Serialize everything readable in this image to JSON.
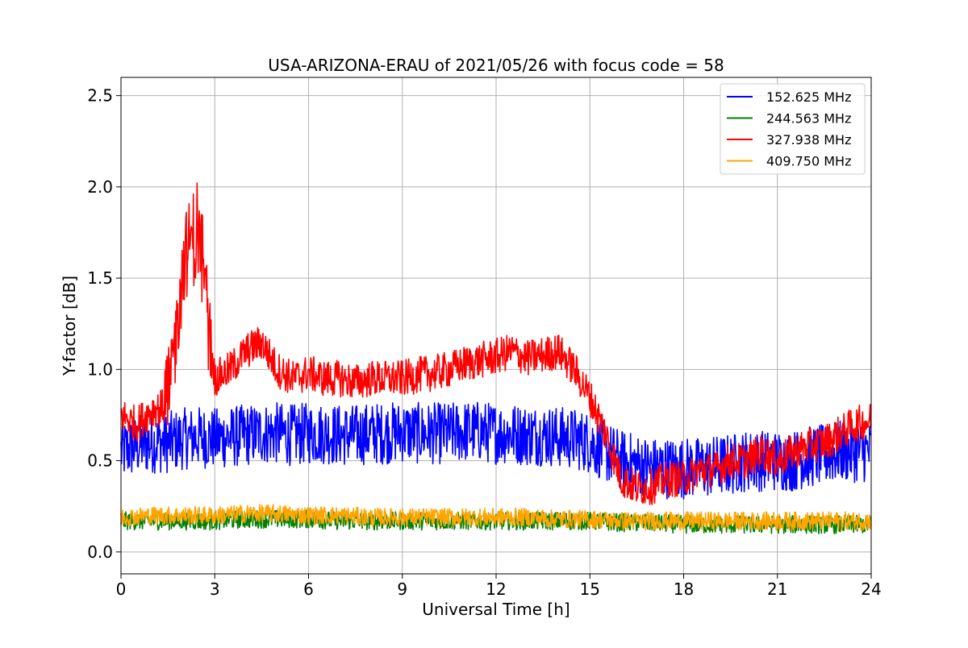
{
  "chart_data": {
    "type": "line",
    "title": "USA-ARIZONA-ERAU of 2021/05/26 with focus code = 58",
    "xlabel": "Universal Time [h]",
    "ylabel": "Y-factor [dB]",
    "xlim": [
      0,
      24
    ],
    "ylim": [
      -0.12,
      2.6
    ],
    "xticks": [
      0,
      3,
      6,
      9,
      12,
      15,
      18,
      21,
      24
    ],
    "xtick_labels": [
      "0",
      "3",
      "6",
      "9",
      "12",
      "15",
      "18",
      "21",
      "24"
    ],
    "yticks": [
      0.0,
      0.5,
      1.0,
      1.5,
      2.0,
      2.5
    ],
    "ytick_labels": [
      "0.0",
      "0.5",
      "1.0",
      "1.5",
      "2.0",
      "2.5"
    ],
    "grid": true,
    "legend_position": "top-right",
    "series": [
      {
        "name": "152.625 MHz",
        "color": "#0000ff",
        "x": [
          0,
          0.5,
          1,
          1.5,
          2,
          2.5,
          3,
          3.5,
          4,
          4.5,
          5,
          5.5,
          6,
          6.5,
          7,
          7.5,
          8,
          8.5,
          9,
          9.5,
          10,
          10.5,
          11,
          11.5,
          12,
          12.5,
          13,
          13.5,
          14,
          14.5,
          15,
          15.5,
          16,
          16.5,
          17,
          17.5,
          18,
          18.5,
          19,
          19.5,
          20,
          20.5,
          21,
          21.5,
          22,
          22.5,
          23,
          23.5,
          24
        ],
        "y": [
          0.55,
          0.58,
          0.6,
          0.6,
          0.62,
          0.63,
          0.62,
          0.63,
          0.64,
          0.65,
          0.65,
          0.64,
          0.65,
          0.65,
          0.64,
          0.64,
          0.65,
          0.65,
          0.66,
          0.65,
          0.65,
          0.65,
          0.66,
          0.66,
          0.65,
          0.65,
          0.64,
          0.64,
          0.63,
          0.62,
          0.6,
          0.55,
          0.5,
          0.48,
          0.46,
          0.46,
          0.46,
          0.46,
          0.47,
          0.48,
          0.5,
          0.5,
          0.5,
          0.5,
          0.52,
          0.53,
          0.55,
          0.55,
          0.55
        ]
      },
      {
        "name": "244.563 MHz",
        "color": "#008000",
        "x": [
          0,
          1,
          2,
          3,
          4,
          5,
          6,
          7,
          8,
          9,
          10,
          11,
          12,
          13,
          14,
          15,
          16,
          17,
          18,
          19,
          20,
          21,
          22,
          23,
          24
        ],
        "y": [
          0.17,
          0.17,
          0.17,
          0.17,
          0.18,
          0.18,
          0.18,
          0.17,
          0.17,
          0.17,
          0.17,
          0.17,
          0.17,
          0.17,
          0.17,
          0.17,
          0.16,
          0.16,
          0.15,
          0.15,
          0.15,
          0.15,
          0.15,
          0.15,
          0.15
        ]
      },
      {
        "name": "327.938 MHz",
        "color": "#ff0000",
        "x": [
          0,
          0.5,
          1,
          1.5,
          2,
          2.5,
          3,
          3.5,
          4,
          4.5,
          5,
          5.5,
          6,
          6.5,
          7,
          7.5,
          8,
          8.5,
          9,
          9.5,
          10,
          10.5,
          11,
          11.5,
          12,
          12.5,
          13,
          13.5,
          14,
          14.5,
          15,
          15.5,
          16,
          16.5,
          17,
          17.5,
          18,
          18.5,
          19,
          19.5,
          20,
          20.5,
          21,
          21.5,
          22,
          22.5,
          23,
          23.5,
          24
        ],
        "y": [
          0.75,
          0.7,
          0.78,
          0.8,
          1.6,
          1.75,
          0.95,
          1.0,
          1.1,
          1.15,
          1.0,
          0.95,
          0.98,
          0.95,
          0.95,
          0.93,
          0.95,
          0.95,
          0.95,
          0.97,
          0.98,
          1.0,
          1.03,
          1.05,
          1.07,
          1.1,
          1.06,
          1.08,
          1.1,
          1.0,
          0.85,
          0.65,
          0.4,
          0.35,
          0.36,
          0.4,
          0.4,
          0.45,
          0.45,
          0.5,
          0.5,
          0.55,
          0.5,
          0.55,
          0.58,
          0.6,
          0.65,
          0.7,
          0.72
        ]
      },
      {
        "name": "409.750 MHz",
        "color": "#ffa500",
        "x": [
          0,
          1,
          2,
          3,
          4,
          5,
          6,
          7,
          8,
          9,
          10,
          11,
          12,
          13,
          14,
          15,
          16,
          17,
          18,
          19,
          20,
          21,
          22,
          23,
          24
        ],
        "y": [
          0.19,
          0.2,
          0.2,
          0.2,
          0.21,
          0.21,
          0.2,
          0.2,
          0.19,
          0.19,
          0.19,
          0.19,
          0.19,
          0.19,
          0.18,
          0.18,
          0.17,
          0.17,
          0.17,
          0.17,
          0.17,
          0.17,
          0.17,
          0.17,
          0.17
        ]
      }
    ]
  }
}
